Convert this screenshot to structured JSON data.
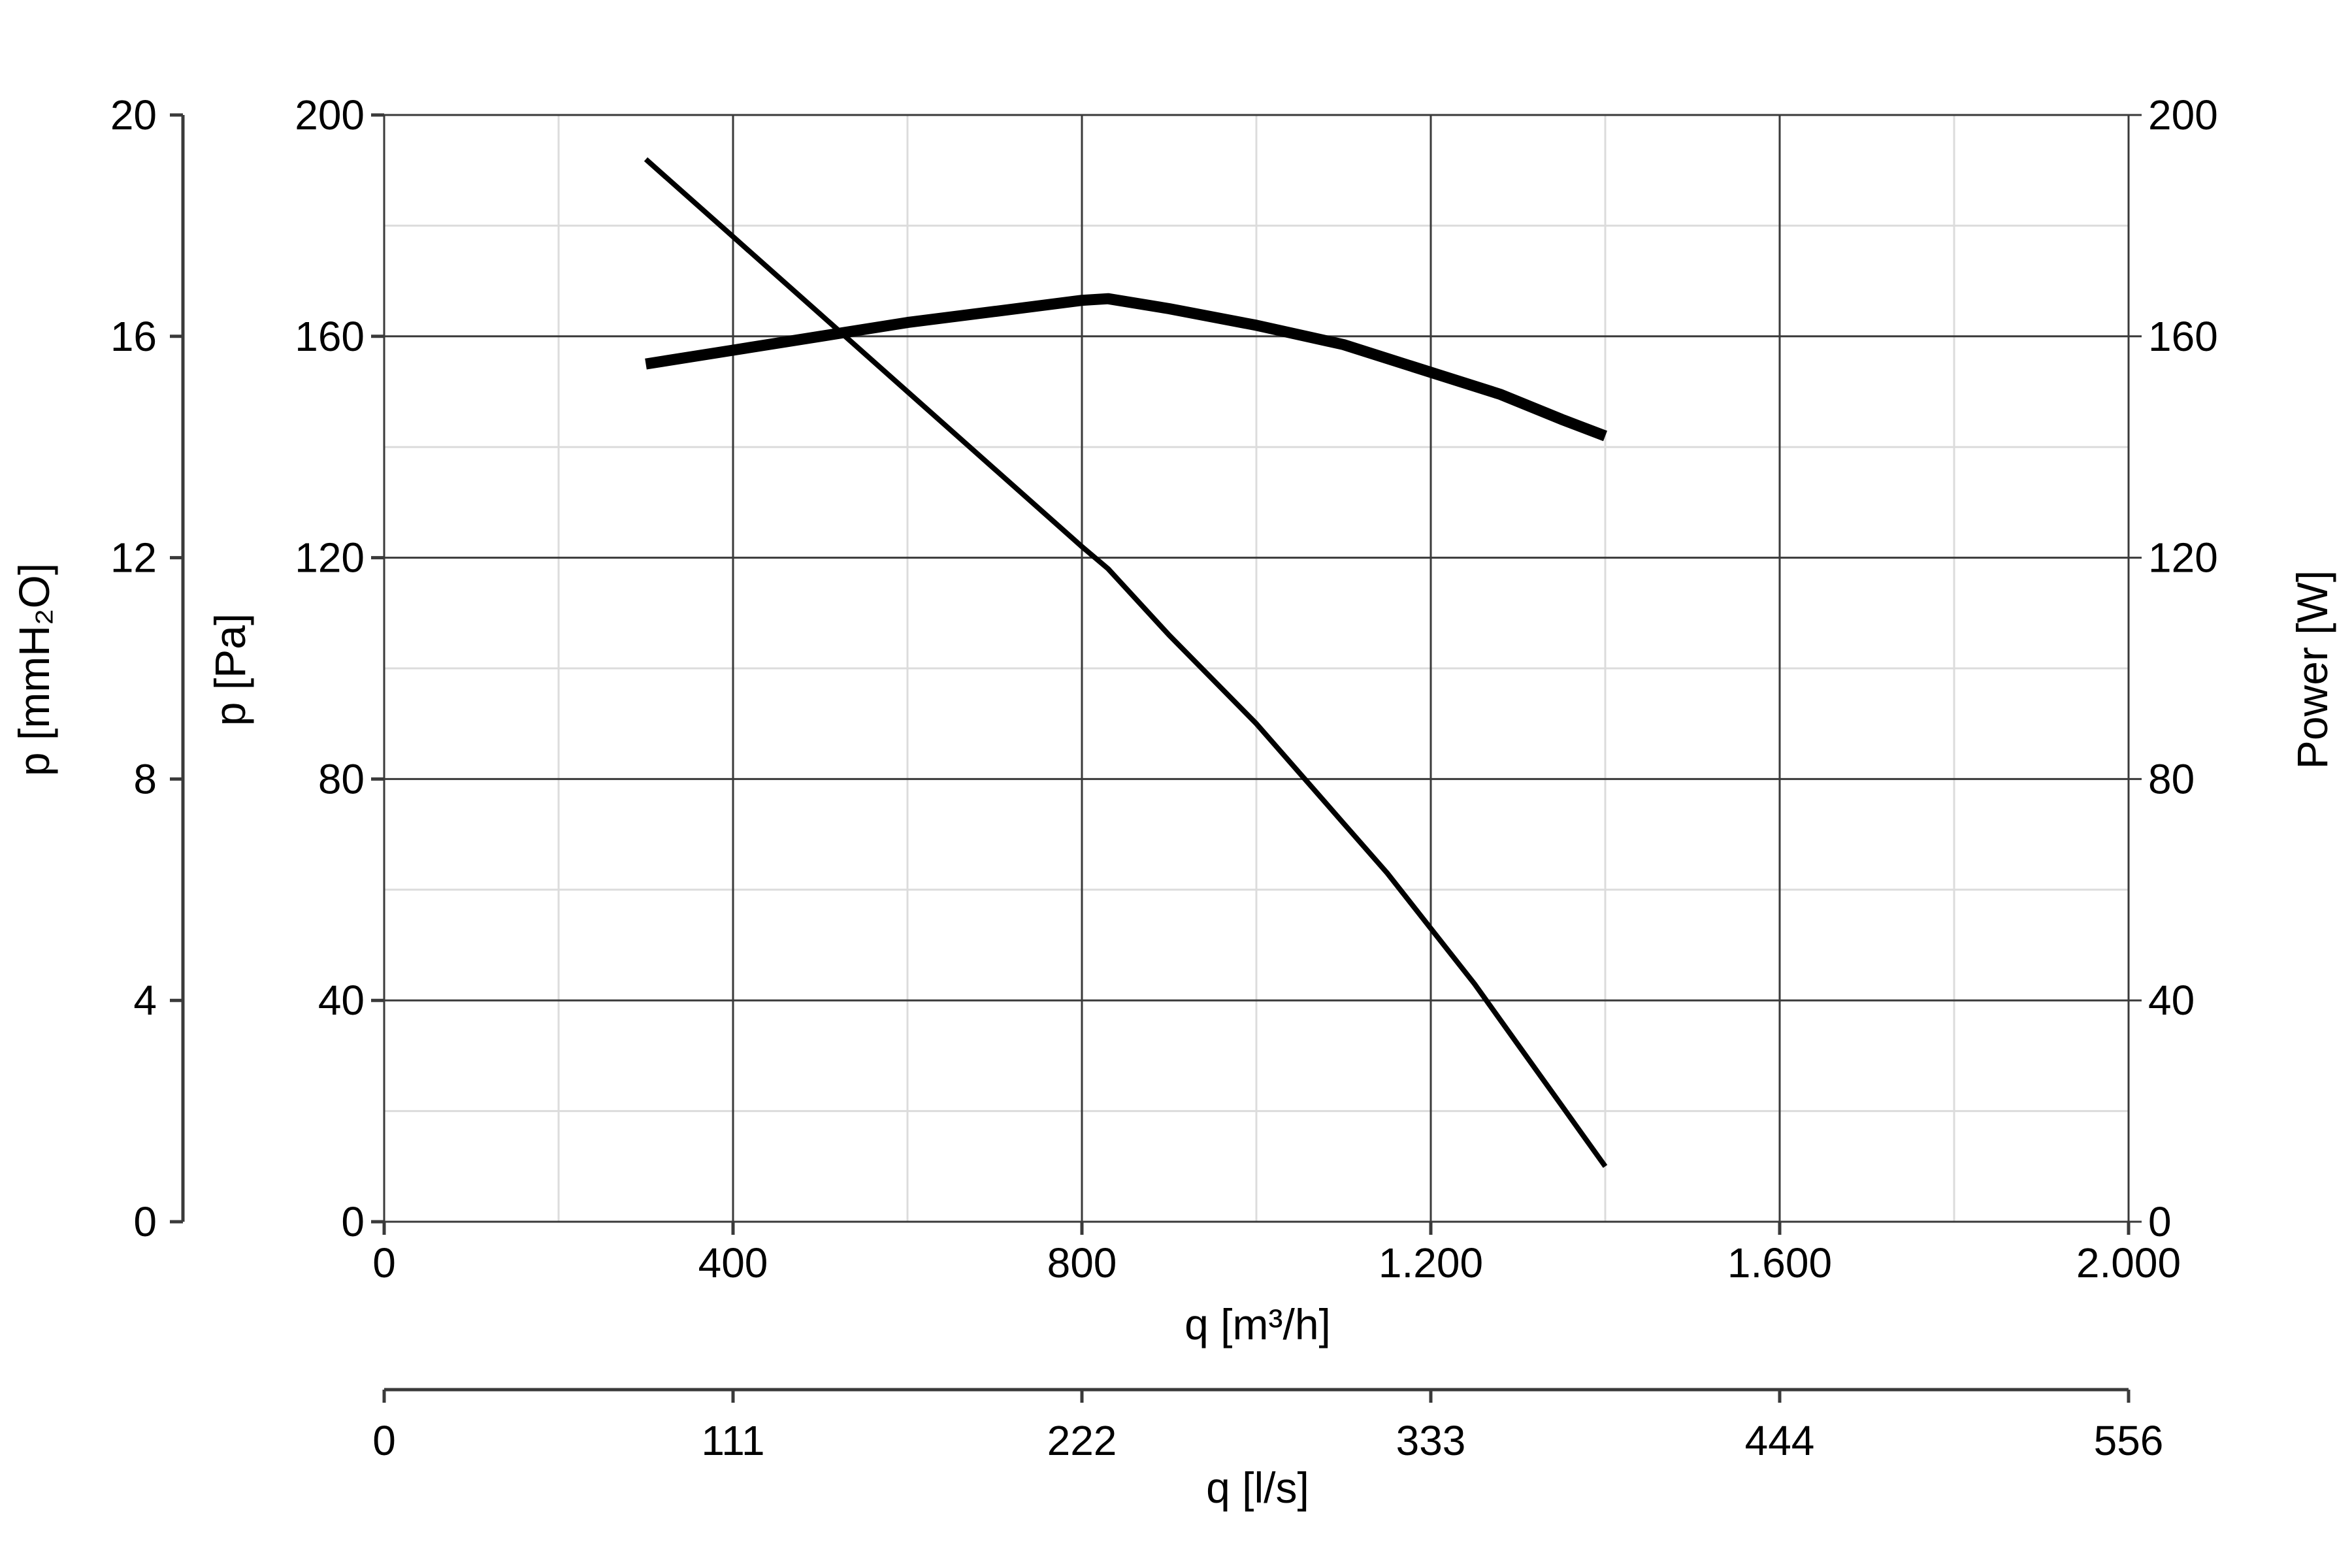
{
  "chart_data": {
    "type": "line",
    "x_axis": {
      "label": "q [m³/h]",
      "range": [
        0,
        2000
      ],
      "ticks": [
        0,
        400,
        800,
        1200,
        1600,
        2000
      ],
      "tick_labels": [
        "0",
        "400",
        "800",
        "1.200",
        "1.600",
        "2.000"
      ],
      "minor_step": 200
    },
    "x2_axis": {
      "label": "q [l/s]",
      "tick_labels": [
        "0",
        "111",
        "222",
        "333",
        "444",
        "556"
      ]
    },
    "y_axis": {
      "label": "p [Pa]",
      "range": [
        0,
        200
      ],
      "ticks": [
        0,
        40,
        80,
        120,
        160,
        200
      ],
      "tick_labels": [
        "0",
        "40",
        "80",
        "120",
        "160",
        "200"
      ],
      "minor_step": 20
    },
    "y_outer_axis": {
      "label": "p [mmH₂O]",
      "tick_labels": [
        "0",
        "4",
        "8",
        "12",
        "16",
        "20"
      ]
    },
    "y_right_axis": {
      "label": "Power [W]",
      "tick_labels": [
        "0",
        "40",
        "80",
        "120",
        "160",
        "200"
      ]
    },
    "grid": true,
    "series": [
      {
        "axis": "pressure",
        "line_weight": "thin",
        "x": [
          300,
          400,
          500,
          600,
          700,
          800,
          830,
          900,
          1000,
          1100,
          1150,
          1200,
          1250,
          1300,
          1350,
          1400
        ],
        "y": [
          192,
          178,
          164,
          150,
          136,
          122,
          118,
          106,
          90,
          72,
          63,
          53,
          43,
          32,
          21,
          10
        ]
      },
      {
        "axis": "power",
        "line_weight": "thick",
        "x": [
          300,
          400,
          500,
          600,
          700,
          800,
          830,
          900,
          1000,
          1100,
          1200,
          1280,
          1350,
          1400
        ],
        "y": [
          155,
          157.5,
          160,
          162.5,
          164.5,
          166.5,
          166.8,
          165,
          162,
          158.5,
          153.5,
          149.5,
          145,
          142
        ]
      }
    ]
  }
}
